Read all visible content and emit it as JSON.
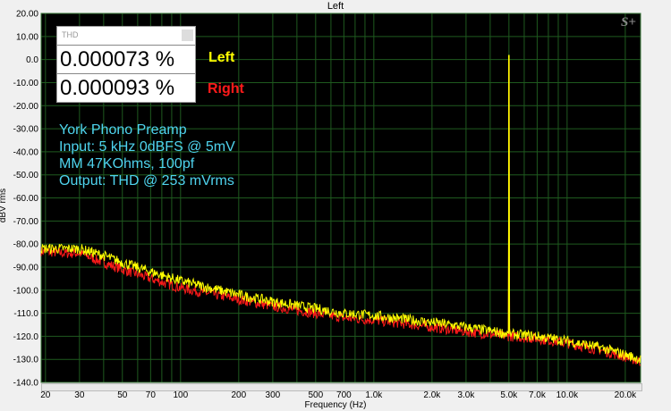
{
  "chart_data": {
    "type": "line",
    "title": "Left",
    "xlabel": "Frequency (Hz)",
    "ylabel": "dBV rms",
    "xscale": "log",
    "xlim": [
      19,
      24000
    ],
    "ylim": [
      -140,
      20
    ],
    "grid": true,
    "yticks": [
      {
        "v": 20,
        "l": "20.00"
      },
      {
        "v": 10,
        "l": "10.00"
      },
      {
        "v": 0,
        "l": "0.0"
      },
      {
        "v": -10,
        "l": "-10.00"
      },
      {
        "v": -20,
        "l": "-20.00"
      },
      {
        "v": -30,
        "l": "-30.00"
      },
      {
        "v": -40,
        "l": "-40.00"
      },
      {
        "v": -50,
        "l": "-50.00"
      },
      {
        "v": -60,
        "l": "-60.00"
      },
      {
        "v": -70,
        "l": "-70.00"
      },
      {
        "v": -80,
        "l": "-80.00"
      },
      {
        "v": -90,
        "l": "-90.00"
      },
      {
        "v": -100,
        "l": "-100.0"
      },
      {
        "v": -110,
        "l": "-110.0"
      },
      {
        "v": -120,
        "l": "-120.0"
      },
      {
        "v": -130,
        "l": "-130.0"
      },
      {
        "v": -140,
        "l": "-140.0"
      }
    ],
    "xticks": [
      {
        "v": 20,
        "l": "20"
      },
      {
        "v": 30,
        "l": "30"
      },
      {
        "v": 50,
        "l": "50"
      },
      {
        "v": 70,
        "l": "70"
      },
      {
        "v": 100,
        "l": "100"
      },
      {
        "v": 200,
        "l": "200"
      },
      {
        "v": 300,
        "l": "300"
      },
      {
        "v": 500,
        "l": "500"
      },
      {
        "v": 700,
        "l": "700"
      },
      {
        "v": 1000,
        "l": "1.0k"
      },
      {
        "v": 2000,
        "l": "2.0k"
      },
      {
        "v": 3000,
        "l": "3.0k"
      },
      {
        "v": 5000,
        "l": "5.0k"
      },
      {
        "v": 7000,
        "l": "7.0k"
      },
      {
        "v": 10000,
        "l": "10.0k"
      },
      {
        "v": 20000,
        "l": "20.0k"
      }
    ],
    "series": [
      {
        "name": "Left",
        "color": "#ffff00",
        "x": [
          19,
          25,
          30,
          40,
          50,
          70,
          100,
          200,
          300,
          500,
          700,
          1000,
          2000,
          3000,
          5000,
          7000,
          10000,
          15000,
          20000,
          24000
        ],
        "y": [
          -82,
          -82,
          -82,
          -85,
          -88,
          -92,
          -96,
          -102,
          -105,
          -108,
          -110,
          -111,
          -114,
          -116,
          -119,
          -120,
          -122,
          -125,
          -128,
          -130
        ],
        "peak": {
          "x": 5000,
          "y": 2
        }
      },
      {
        "name": "Right",
        "color": "#ff1a1a",
        "x": [
          19,
          25,
          30,
          40,
          50,
          70,
          100,
          200,
          300,
          500,
          700,
          1000,
          2000,
          3000,
          5000,
          7000,
          10000,
          15000,
          20000,
          24000
        ],
        "y": [
          -83,
          -84,
          -84,
          -88,
          -91,
          -95,
          -99,
          -104,
          -107,
          -110,
          -112,
          -113,
          -116,
          -118,
          -120,
          -121,
          -123,
          -126,
          -129,
          -131
        ],
        "peak": {
          "x": 5000,
          "y": 0
        }
      }
    ]
  },
  "thd_panel": {
    "title": "THD",
    "left_value": "0.000073 %",
    "right_value": "0.000093 %",
    "left_label": "Left",
    "right_label": "Right"
  },
  "notes": [
    "York Phono Preamp",
    "Input: 5 kHz 0dBFS @ 5mV",
    "MM 47KOhms, 100pf",
    "Output: THD @ 253 mVrms"
  ],
  "logo": "S+"
}
